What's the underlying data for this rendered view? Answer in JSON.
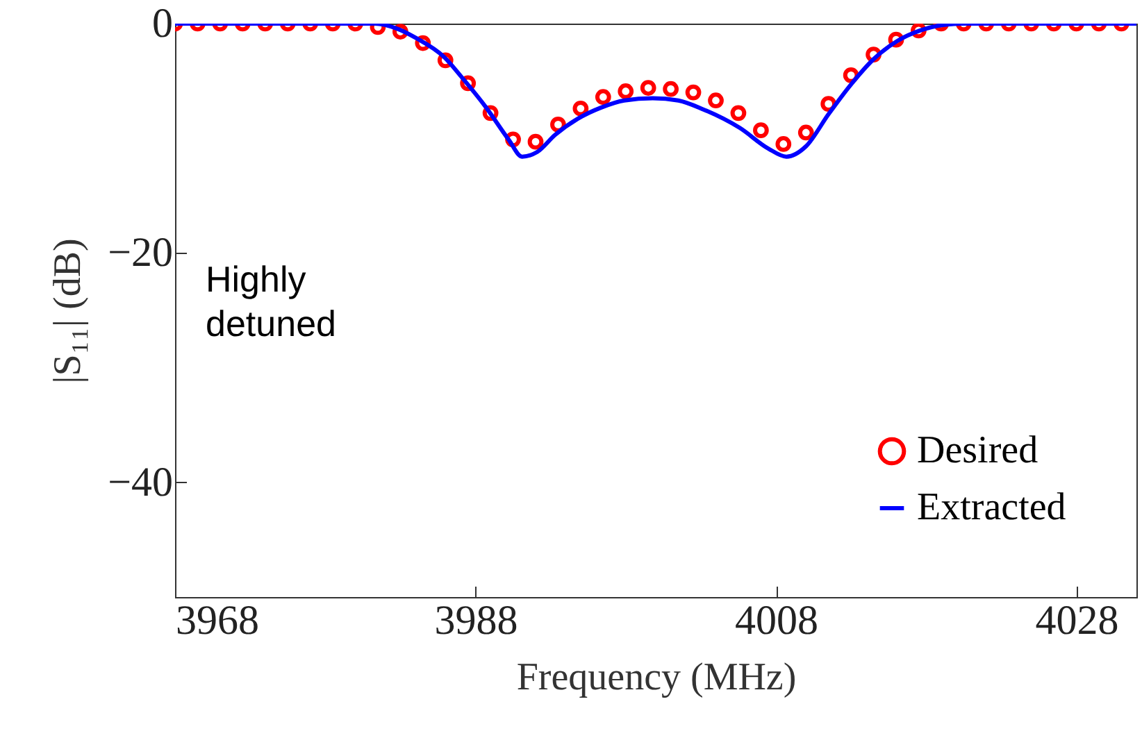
{
  "chart_data": {
    "type": "line",
    "xlabel": "Frequency (MHz)",
    "ylabel": "|S₁₁| (dB)",
    "xlim": [
      3968,
      4032
    ],
    "xticks": [
      3968,
      3988,
      4008,
      4028
    ],
    "ylim": [
      -50,
      0
    ],
    "yticks": [
      -40,
      -20,
      0
    ],
    "grid": false,
    "legend": "bottom right",
    "annotations": [
      "Highly detuned"
    ],
    "series": [
      {
        "name": "Desired",
        "type": "scatter",
        "marker": "circle",
        "color": "#ff0000",
        "x": [
          3968,
          3969.5,
          3971,
          3972.5,
          3974,
          3975.5,
          3977,
          3978.5,
          3980,
          3981.5,
          3983,
          3984.5,
          3986,
          3987.5,
          3989,
          3990.5,
          3992,
          3993.5,
          3995,
          3996.5,
          3998,
          3999.5,
          4001,
          4002.5,
          4004,
          4005.5,
          4007,
          4008.5,
          4010,
          4011.5,
          4013,
          4014.5,
          4016,
          4017.5,
          4019,
          4020.5,
          4022,
          4023.5,
          4025,
          4026.5,
          4028,
          4029.5,
          4031
        ],
        "values": [
          0,
          0,
          0,
          0,
          0,
          0,
          0,
          0,
          0,
          -0.3,
          -0.7,
          -1.7,
          -3.2,
          -5.2,
          -7.8,
          -10.1,
          -10.3,
          -8.8,
          -7.4,
          -6.4,
          -5.9,
          -5.6,
          -5.7,
          -6.0,
          -6.7,
          -7.8,
          -9.3,
          -10.5,
          -9.5,
          -7.0,
          -4.5,
          -2.7,
          -1.4,
          -0.6,
          0,
          0,
          0,
          0,
          0,
          0,
          0,
          0,
          0
        ]
      },
      {
        "name": "Extracted",
        "line_style": "solid",
        "color": "#0000ff",
        "x": [
          3968,
          3981.3,
          3982.7,
          3984.1,
          3985.9,
          3987.1,
          3988.7,
          3990.2,
          3991.1,
          3992.1,
          3993.3,
          3994.8,
          3996.4,
          3997.9,
          3999.8,
          4001.5,
          4003.2,
          4005.6,
          4007.5,
          4008.7,
          4010.0,
          4011.5,
          4013.0,
          4014.5,
          4016.1,
          4017.6,
          4019.2,
          4020.5,
          4032
        ],
        "values": [
          0,
          0,
          -0.4,
          -1.3,
          -2.9,
          -4.7,
          -7.3,
          -10.1,
          -11.6,
          -11.2,
          -9.7,
          -8.3,
          -7.3,
          -6.7,
          -6.5,
          -6.7,
          -7.5,
          -9.1,
          -10.9,
          -11.6,
          -10.7,
          -7.9,
          -5.3,
          -3.1,
          -1.5,
          -0.6,
          -0.1,
          0,
          0
        ]
      }
    ]
  }
}
